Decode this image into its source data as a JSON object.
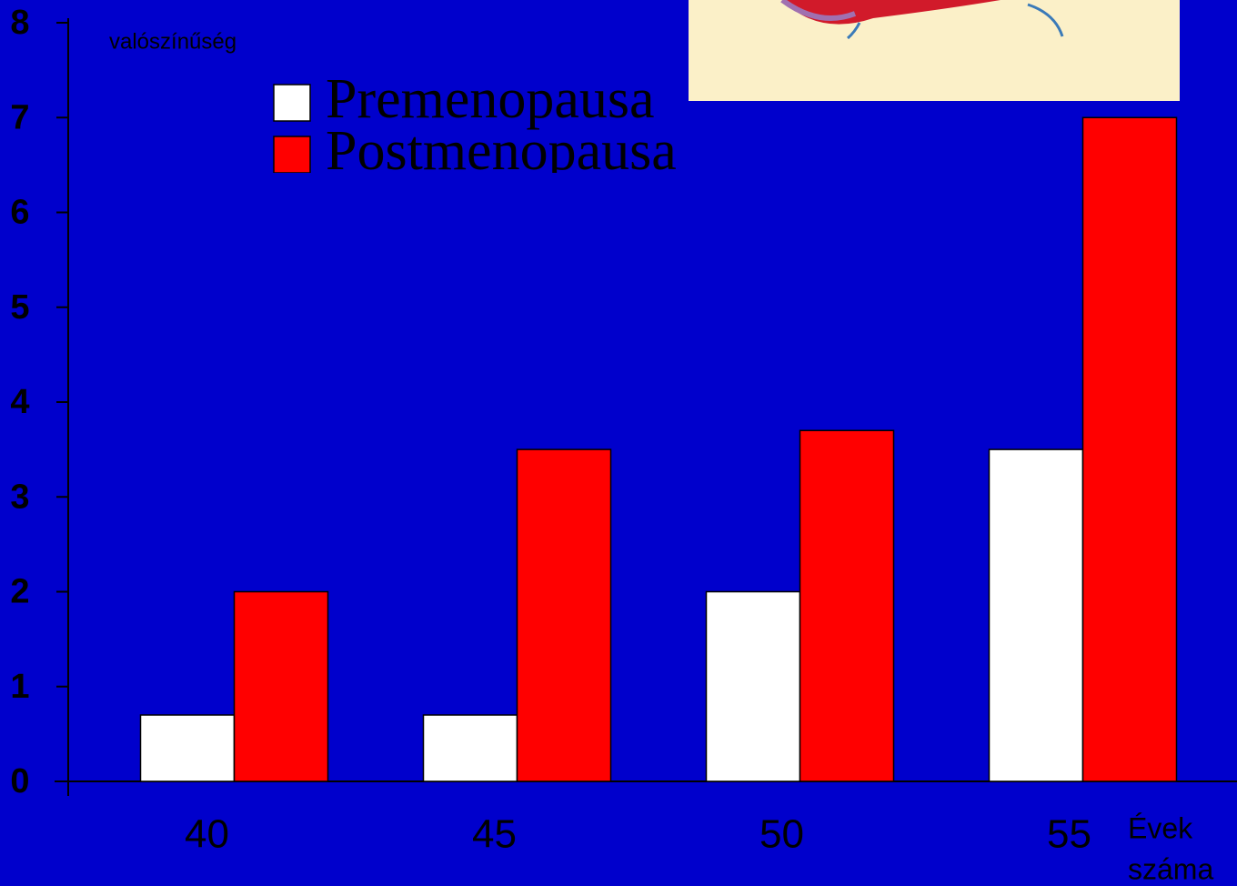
{
  "chart_data": {
    "type": "bar",
    "y_label": "valószínűség",
    "x_label": [
      "Évek",
      "száma"
    ],
    "categories": [
      "40",
      "45",
      "50",
      "55"
    ],
    "series": [
      {
        "name": "Premenopausa",
        "color": "#ffffff",
        "values": [
          0.7,
          0.7,
          2,
          3.5
        ]
      },
      {
        "name": "Postmenopausa",
        "color": "#ff0000",
        "values": [
          2,
          3.5,
          3.7,
          7
        ]
      }
    ],
    "ylim": [
      0,
      8
    ],
    "yticks": [
      0,
      1,
      2,
      3,
      4,
      5,
      6,
      7,
      8
    ]
  }
}
